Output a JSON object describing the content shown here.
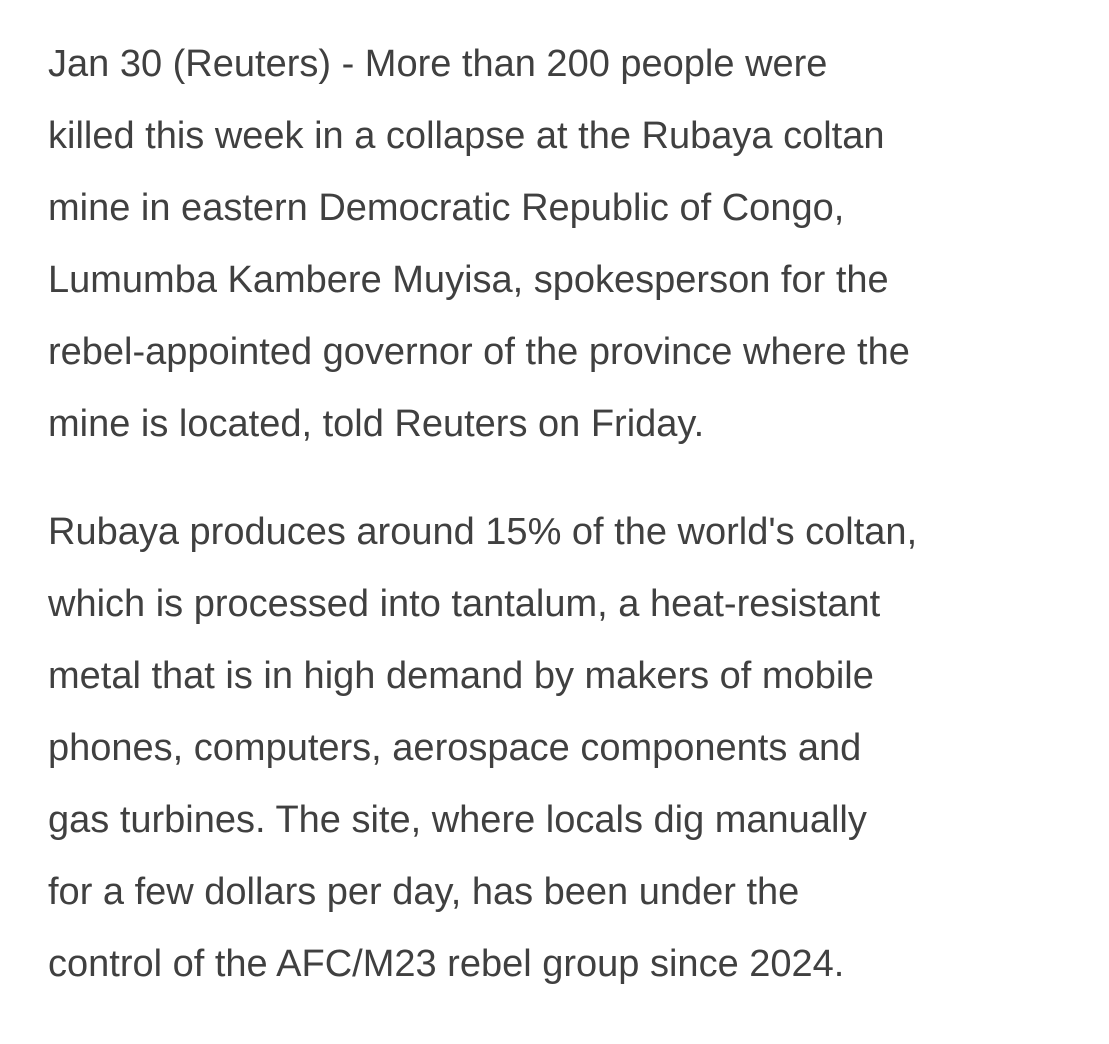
{
  "article": {
    "paragraphs": [
      {
        "lines": [
          "Jan 30 (Reuters) - More than 200 people were",
          "killed this week in a collapse at the Rubaya coltan",
          "mine in eastern Democratic Republic of Congo,",
          "Lumumba Kambere Muyisa, spokesperson for the",
          "rebel-appointed governor of the province where the",
          "mine is located, told Reuters on Friday."
        ]
      },
      {
        "lines": [
          "Rubaya produces around 15% of the world's coltan,",
          "which is processed into tantalum, a heat-resistant",
          "metal that is in high demand by makers of mobile",
          "phones, computers, aerospace components and",
          "gas turbines. The site, where locals dig manually",
          "for a few dollars per day, has been under the",
          "control of the AFC/M23 rebel group since 2024."
        ]
      }
    ],
    "text_color": "#404040"
  }
}
